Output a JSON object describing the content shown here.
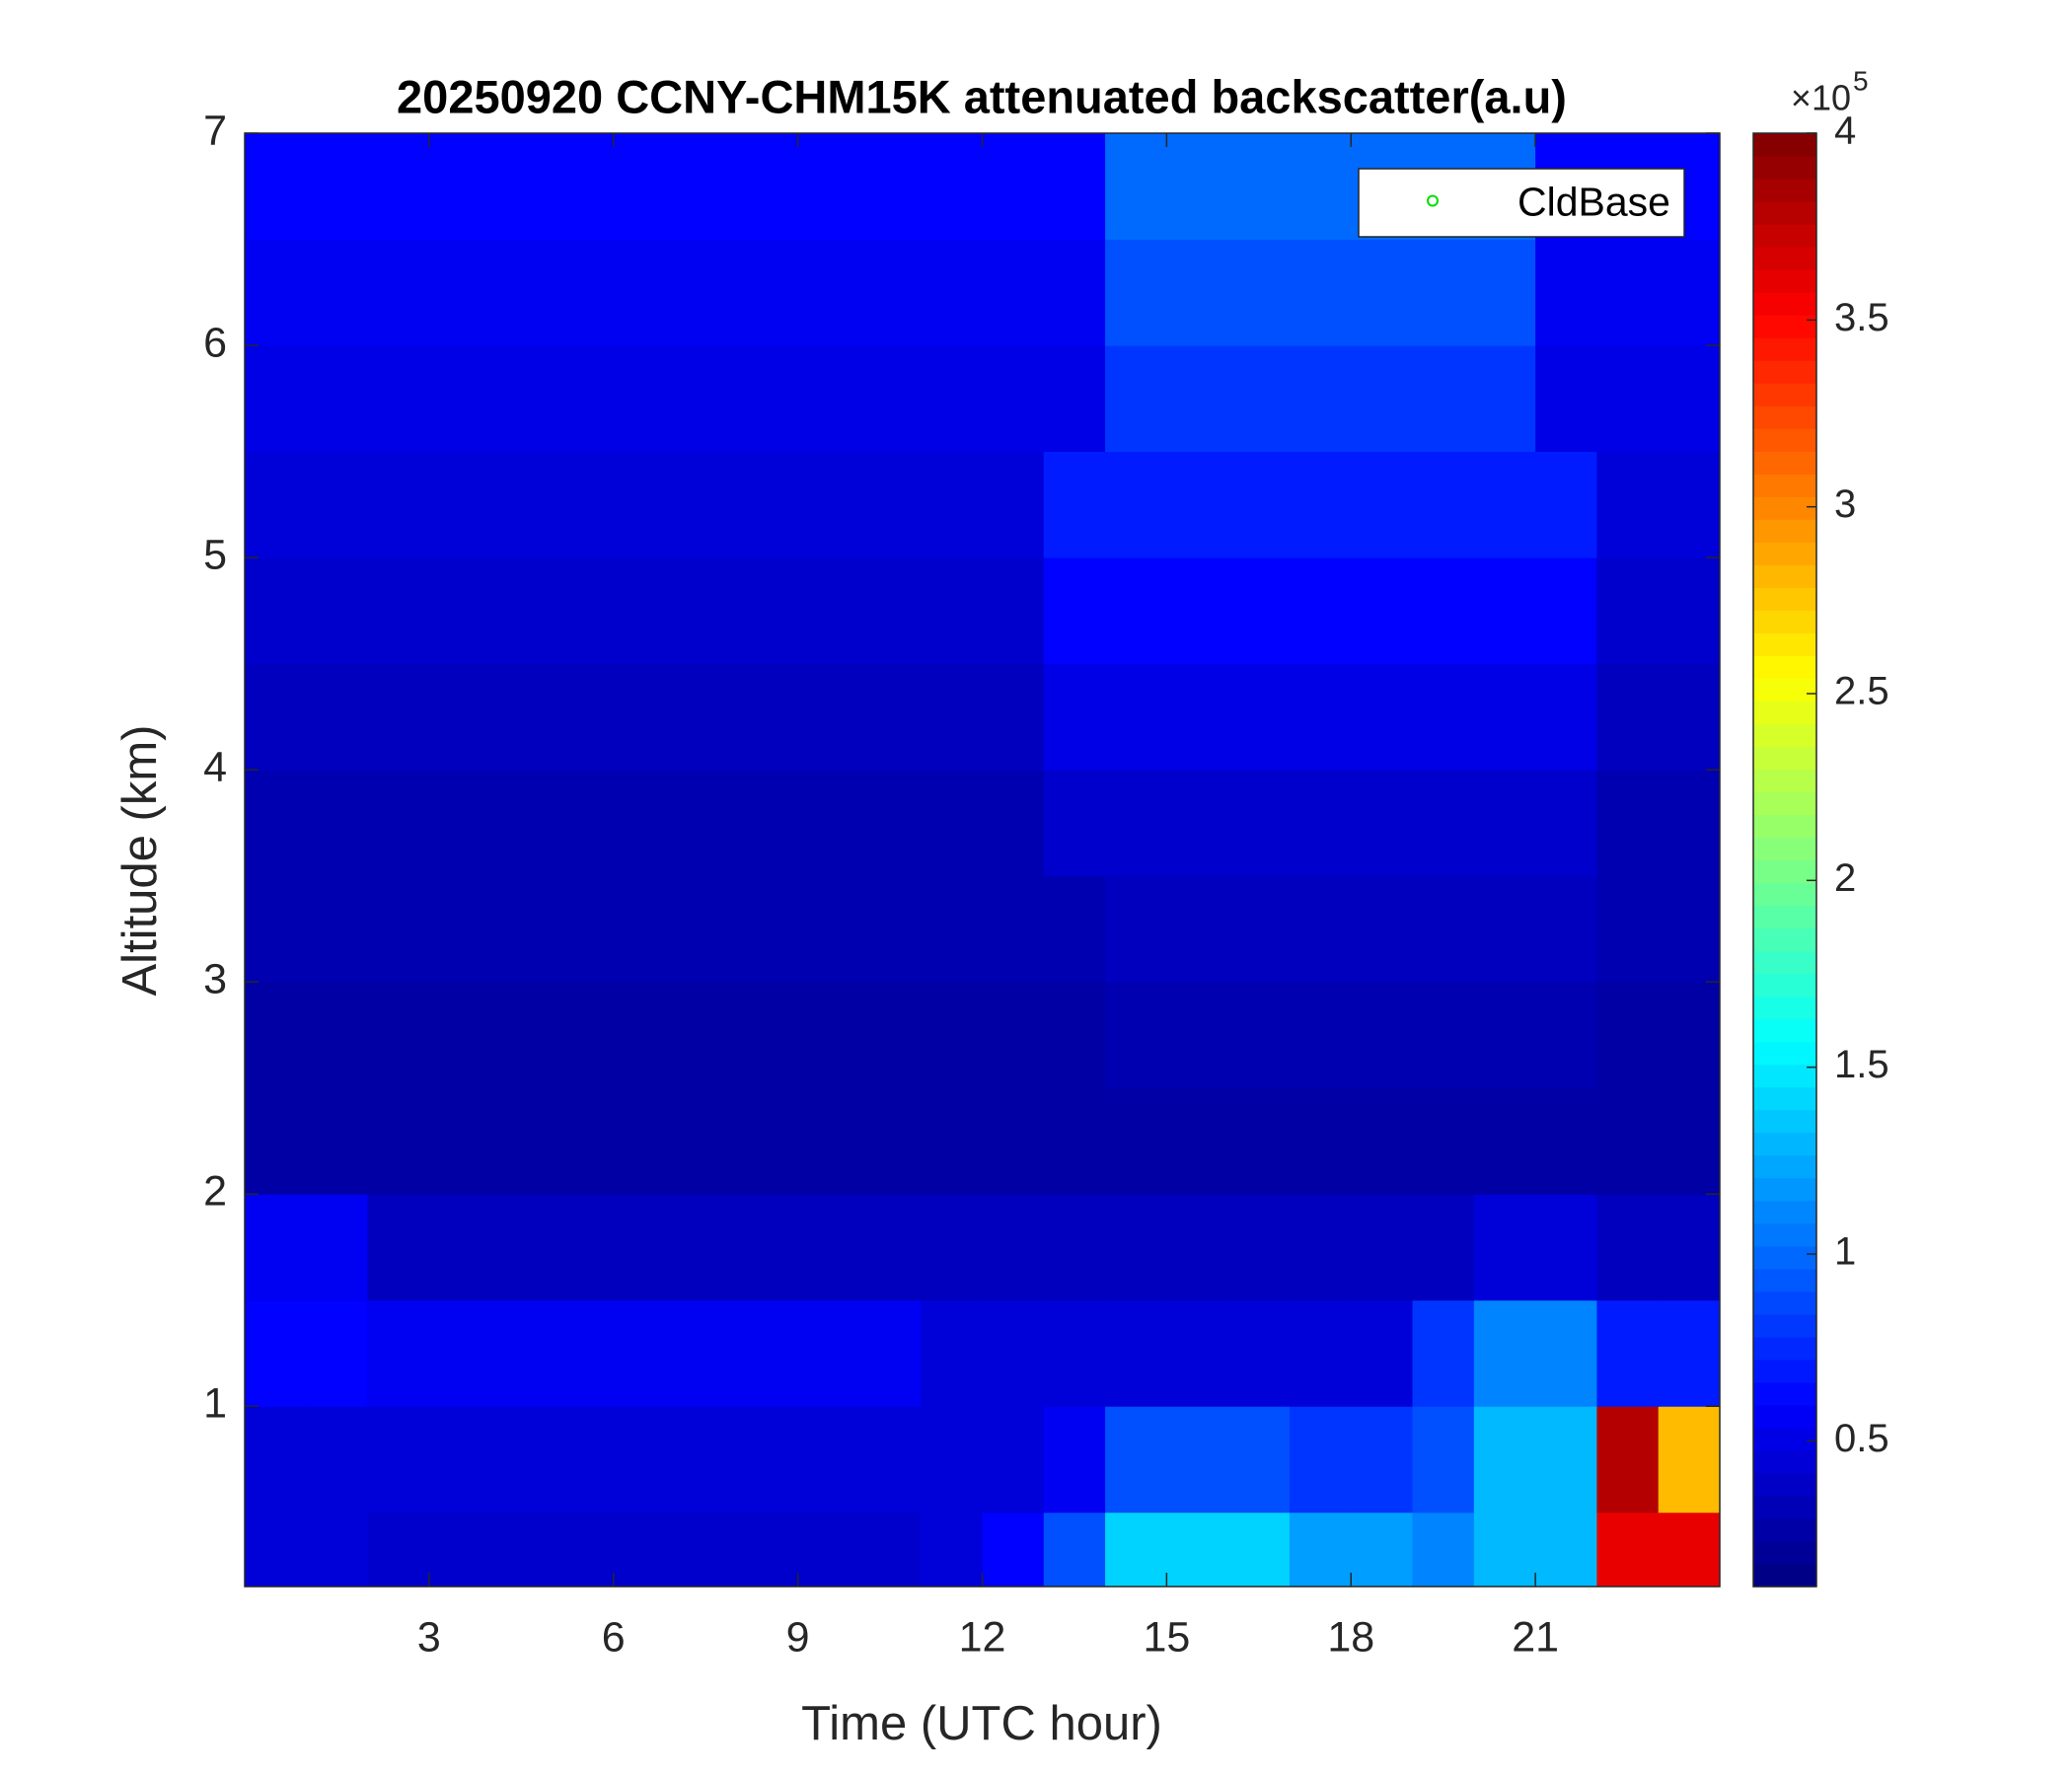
{
  "chart_data": {
    "type": "heatmap",
    "title": "20250920 CCNY-CHM15K attenuated backscatter(a.u)",
    "x_label": "Time (UTC hour)",
    "y_label": "Altitude (km)",
    "xlim": [
      0,
      24
    ],
    "xticks": [
      3,
      6,
      9,
      12,
      15,
      18,
      21
    ],
    "ylim": [
      0.15,
      7
    ],
    "yticks": [
      1,
      2,
      3,
      4,
      5,
      6,
      7
    ],
    "x_edges": [
      0,
      1,
      2,
      3,
      4,
      5,
      6,
      7,
      8,
      9,
      10,
      11,
      12,
      13,
      14,
      15,
      16,
      17,
      18,
      19,
      20,
      21,
      22,
      23,
      24
    ],
    "y_edges": [
      0.15,
      0.5,
      1,
      1.5,
      2,
      2.5,
      3,
      3.5,
      4,
      4.5,
      5,
      5.5,
      6,
      6.5,
      7
    ],
    "z": [
      [
        0.45,
        0.45,
        0.4,
        0.4,
        0.4,
        0.4,
        0.4,
        0.4,
        0.4,
        0.4,
        0.4,
        0.45,
        0.6,
        0.9,
        1.4,
        1.4,
        1.4,
        1.2,
        1.2,
        1.1,
        1.3,
        1.3,
        3.6,
        3.6
      ],
      [
        0.45,
        0.45,
        0.45,
        0.45,
        0.45,
        0.45,
        0.45,
        0.45,
        0.45,
        0.45,
        0.45,
        0.45,
        0.45,
        0.55,
        0.9,
        0.9,
        0.9,
        0.8,
        0.8,
        0.9,
        1.3,
        1.3,
        3.8,
        2.8
      ],
      [
        0.6,
        0.6,
        0.55,
        0.55,
        0.55,
        0.55,
        0.55,
        0.55,
        0.55,
        0.55,
        0.55,
        0.45,
        0.45,
        0.45,
        0.45,
        0.45,
        0.45,
        0.45,
        0.45,
        0.8,
        1.1,
        1.1,
        0.7,
        0.7
      ],
      [
        0.55,
        0.55,
        0.35,
        0.35,
        0.35,
        0.35,
        0.35,
        0.35,
        0.35,
        0.35,
        0.35,
        0.35,
        0.35,
        0.35,
        0.35,
        0.35,
        0.35,
        0.35,
        0.35,
        0.35,
        0.45,
        0.45,
        0.35,
        0.35
      ],
      [
        0.25,
        0.25,
        0.25,
        0.25,
        0.25,
        0.25,
        0.25,
        0.25,
        0.25,
        0.25,
        0.25,
        0.25,
        0.25,
        0.25,
        0.25,
        0.25,
        0.25,
        0.25,
        0.25,
        0.25,
        0.25,
        0.25,
        0.25,
        0.25
      ],
      [
        0.25,
        0.25,
        0.25,
        0.25,
        0.25,
        0.25,
        0.25,
        0.25,
        0.25,
        0.25,
        0.25,
        0.25,
        0.25,
        0.25,
        0.3,
        0.3,
        0.3,
        0.3,
        0.3,
        0.3,
        0.3,
        0.3,
        0.25,
        0.25
      ],
      [
        0.3,
        0.3,
        0.3,
        0.3,
        0.3,
        0.3,
        0.3,
        0.3,
        0.3,
        0.3,
        0.3,
        0.3,
        0.3,
        0.3,
        0.35,
        0.35,
        0.35,
        0.35,
        0.35,
        0.35,
        0.35,
        0.35,
        0.3,
        0.3
      ],
      [
        0.3,
        0.3,
        0.3,
        0.3,
        0.3,
        0.3,
        0.3,
        0.3,
        0.3,
        0.3,
        0.3,
        0.3,
        0.3,
        0.4,
        0.4,
        0.4,
        0.4,
        0.4,
        0.4,
        0.4,
        0.4,
        0.4,
        0.3,
        0.3
      ],
      [
        0.35,
        0.35,
        0.35,
        0.35,
        0.35,
        0.35,
        0.35,
        0.35,
        0.35,
        0.35,
        0.35,
        0.35,
        0.35,
        0.5,
        0.5,
        0.5,
        0.5,
        0.5,
        0.5,
        0.5,
        0.5,
        0.5,
        0.35,
        0.35
      ],
      [
        0.4,
        0.4,
        0.4,
        0.4,
        0.4,
        0.4,
        0.4,
        0.4,
        0.4,
        0.4,
        0.4,
        0.4,
        0.4,
        0.6,
        0.6,
        0.6,
        0.6,
        0.6,
        0.6,
        0.6,
        0.6,
        0.6,
        0.4,
        0.4
      ],
      [
        0.45,
        0.45,
        0.45,
        0.45,
        0.45,
        0.45,
        0.45,
        0.45,
        0.45,
        0.45,
        0.45,
        0.45,
        0.45,
        0.7,
        0.7,
        0.7,
        0.7,
        0.7,
        0.7,
        0.7,
        0.7,
        0.7,
        0.45,
        0.45
      ],
      [
        0.5,
        0.5,
        0.5,
        0.5,
        0.5,
        0.5,
        0.5,
        0.5,
        0.5,
        0.5,
        0.5,
        0.5,
        0.5,
        0.5,
        0.8,
        0.8,
        0.8,
        0.8,
        0.8,
        0.8,
        0.8,
        0.5,
        0.5,
        0.5
      ],
      [
        0.55,
        0.55,
        0.55,
        0.55,
        0.55,
        0.55,
        0.55,
        0.55,
        0.55,
        0.55,
        0.55,
        0.55,
        0.55,
        0.55,
        0.9,
        0.9,
        0.9,
        0.9,
        0.9,
        0.9,
        0.9,
        0.55,
        0.55,
        0.55
      ],
      [
        0.6,
        0.6,
        0.6,
        0.6,
        0.6,
        0.6,
        0.6,
        0.6,
        0.6,
        0.6,
        0.6,
        0.6,
        0.6,
        0.6,
        1.0,
        1.0,
        1.0,
        1.0,
        1.0,
        1.0,
        1.0,
        0.6,
        0.6,
        0.6
      ]
    ],
    "clim": [
      0.11,
      4
    ],
    "cticks": [
      0.5,
      1,
      1.5,
      2,
      2.5,
      3,
      3.5,
      4
    ],
    "colorbar_multiplier": {
      "base": "×10",
      "exponent": "5"
    },
    "colormap": "jet",
    "series": [
      {
        "name": "CldBase",
        "color": "#00dd00",
        "marker": "o",
        "values": []
      }
    ],
    "legend": "upper right"
  }
}
